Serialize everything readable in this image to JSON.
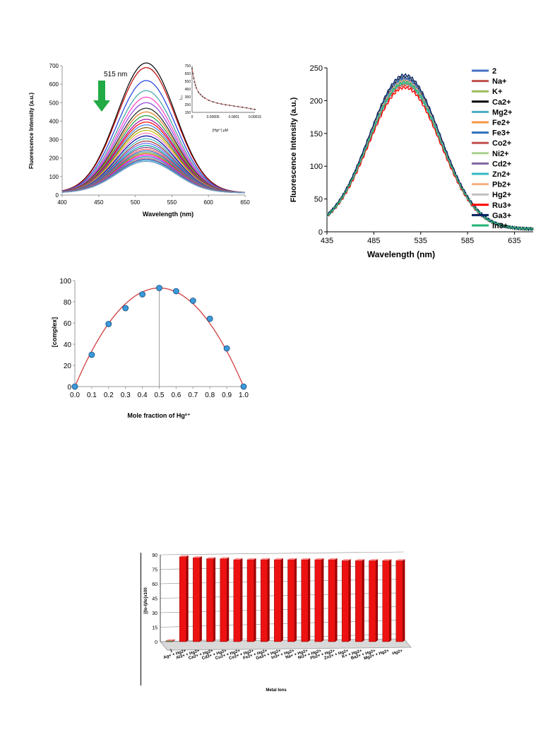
{
  "chart_data": [
    {
      "type": "line",
      "xlabel": "Wavelength (nm)",
      "ylabel": "Fluorescence Intensity (a.u.)",
      "xlim": [
        400,
        650
      ],
      "ylim": [
        0,
        700
      ],
      "xticks": [
        "400",
        "450",
        "500",
        "550",
        "600",
        "650"
      ],
      "yticks": [
        "0",
        "100",
        "200",
        "300",
        "400",
        "500",
        "600",
        "700"
      ],
      "annotation": "515 nm",
      "arrow_color": "#22aa44",
      "center_nm": 515,
      "baseline": 12,
      "sigma_nm": 40,
      "peak_values": [
        715,
        690,
        620,
        565,
        530,
        500,
        470,
        450,
        430,
        410,
        395,
        380,
        365,
        350,
        335,
        320,
        305,
        292,
        280,
        268,
        258,
        248,
        240,
        232,
        224,
        216,
        208,
        200,
        194,
        188,
        182
      ],
      "series_colors": [
        "#000000",
        "#c00000",
        "#1f3fdf",
        "#3fa0a0",
        "#ff3fbf",
        "#8a3fdf",
        "#202020",
        "#e08020",
        "#20a040",
        "#a000a0",
        "#ff0000",
        "#4080ff",
        "#806000",
        "#c0c000",
        "#ff80c0",
        "#0000a0",
        "#40c0c0",
        "#a03030",
        "#6060ff",
        "#00a0a0",
        "#804080",
        "#ff6060",
        "#3060c0",
        "#60a060",
        "#c06000",
        "#ff00ff",
        "#2080c0",
        "#c08080",
        "#5050a0",
        "#40b0e0",
        "#80a0c0"
      ],
      "inset": {
        "type": "line",
        "xlabel": "[Hg²⁺] μM",
        "ylabel": "I₅₁₅",
        "xticks": [
          "0",
          "0.00005",
          "0.0001",
          "0.00015"
        ],
        "yticks": [
          "150",
          "250",
          "350",
          "450",
          "550",
          "650",
          "750"
        ],
        "xlim": [
          0,
          0.00015
        ],
        "ylim": [
          150,
          750
        ],
        "x": [
          0,
          2e-06,
          4e-06,
          6e-06,
          8e-06,
          1e-05,
          1.5e-05,
          2e-05,
          2.5e-05,
          3e-05,
          4e-05,
          5e-05,
          6e-05,
          7e-05,
          8e-05,
          9e-05,
          0.0001,
          0.00011,
          0.00012,
          0.00013,
          0.00014,
          0.00015
        ],
        "y": [
          715,
          650,
          590,
          540,
          500,
          465,
          410,
          380,
          355,
          335,
          305,
          285,
          270,
          258,
          248,
          240,
          232,
          224,
          216,
          208,
          198,
          188
        ]
      }
    },
    {
      "type": "line",
      "xlabel": "Wavelength (nm)",
      "ylabel": "Fluorescence Intensity (a.u.)",
      "xlim": [
        435,
        655
      ],
      "ylim": [
        0,
        250
      ],
      "xticks": [
        "435",
        "485",
        "535",
        "585",
        "635"
      ],
      "yticks": [
        "0",
        "50",
        "100",
        "150",
        "200",
        "250"
      ],
      "center_nm": 518,
      "sigma_nm": 38,
      "baseline": 4,
      "series": [
        {
          "name": "2",
          "color": "#4472c4",
          "peak": 235
        },
        {
          "name": "Na+",
          "color": "#c0504d",
          "peak": 228
        },
        {
          "name": "K+",
          "color": "#9bbb59",
          "peak": 230
        },
        {
          "name": "Ca2+",
          "color": "#000000",
          "peak": 236
        },
        {
          "name": "Mg2+",
          "color": "#4bacc6",
          "peak": 232
        },
        {
          "name": "Fe2+",
          "color": "#f79646",
          "peak": 226
        },
        {
          "name": "Fe3+",
          "color": "#2c6fbb",
          "peak": 233
        },
        {
          "name": "Co2+",
          "color": "#c0504d",
          "peak": 224
        },
        {
          "name": "Ni2+",
          "color": "#a9d18e",
          "peak": 229
        },
        {
          "name": "Cd2+",
          "color": "#8064a2",
          "peak": 231
        },
        {
          "name": "Zn2+",
          "color": "#31b8c6",
          "peak": 227
        },
        {
          "name": "Pb2+",
          "color": "#f4b183",
          "peak": 230
        },
        {
          "name": "Hg2+",
          "color": "#bfbfbf",
          "peak": 238
        },
        {
          "name": "Ru3+",
          "color": "#ff0000",
          "peak": 220
        },
        {
          "name": "Ga3+",
          "color": "#002060",
          "peak": 239
        },
        {
          "name": "In3+",
          "color": "#22b573",
          "peak": 228
        }
      ]
    },
    {
      "type": "scatter",
      "xlabel": "Mole fraction of Hg²⁺",
      "ylabel": "[complex]",
      "xlim": [
        0,
        1
      ],
      "ylim": [
        0,
        100
      ],
      "xticks": [
        "0.0",
        "0.1",
        "0.2",
        "0.3",
        "0.4",
        "0.5",
        "0.6",
        "0.7",
        "0.8",
        "0.9",
        "1.0"
      ],
      "yticks": [
        "0",
        "20",
        "40",
        "60",
        "80",
        "100"
      ],
      "x": [
        0.0,
        0.1,
        0.2,
        0.3,
        0.4,
        0.5,
        0.6,
        0.7,
        0.8,
        0.9,
        1.0
      ],
      "y": [
        0,
        30,
        59,
        74,
        87,
        93,
        90,
        81,
        64,
        36,
        0
      ],
      "marker_color": "#3a9ad9",
      "curve_color": "#d04040",
      "vline_x": 0.5
    },
    {
      "type": "bar",
      "xlabel": "Metal Ions",
      "ylabel": "[(Io-I)/Io]x100",
      "ylim": [
        0,
        90
      ],
      "yticks": [
        "0",
        "15",
        "30",
        "45",
        "60",
        "75",
        "90"
      ],
      "categories": [
        "1",
        "Ag+ + Hg2+",
        "Al3+ + Hg2+",
        "Ca2+ + Hg2+",
        "Cd2+ + Hg2+",
        "Cu2+ + Hg2+",
        "Co2+ + Hg2+",
        "Fe2+ + Hg2+",
        "Ga3+ + Hg2+",
        "In3+ + Hg2+",
        "Na+ + Hg2+",
        "Ni2+ + Hg2+",
        "Pb2+ + Hg2+",
        "Zn2+ + Hg2+",
        "K+ + Hg2+",
        "Ba2+ + Hg2+",
        "Mg2+ + Hg2+",
        "Hg2+"
      ],
      "values": [
        1,
        88,
        87,
        86,
        86,
        85,
        85,
        85,
        85,
        85,
        85,
        85,
        85,
        84,
        84,
        84,
        84,
        84
      ],
      "bar_color": "#ee1111",
      "first_bar_color": "#22aa44"
    }
  ]
}
